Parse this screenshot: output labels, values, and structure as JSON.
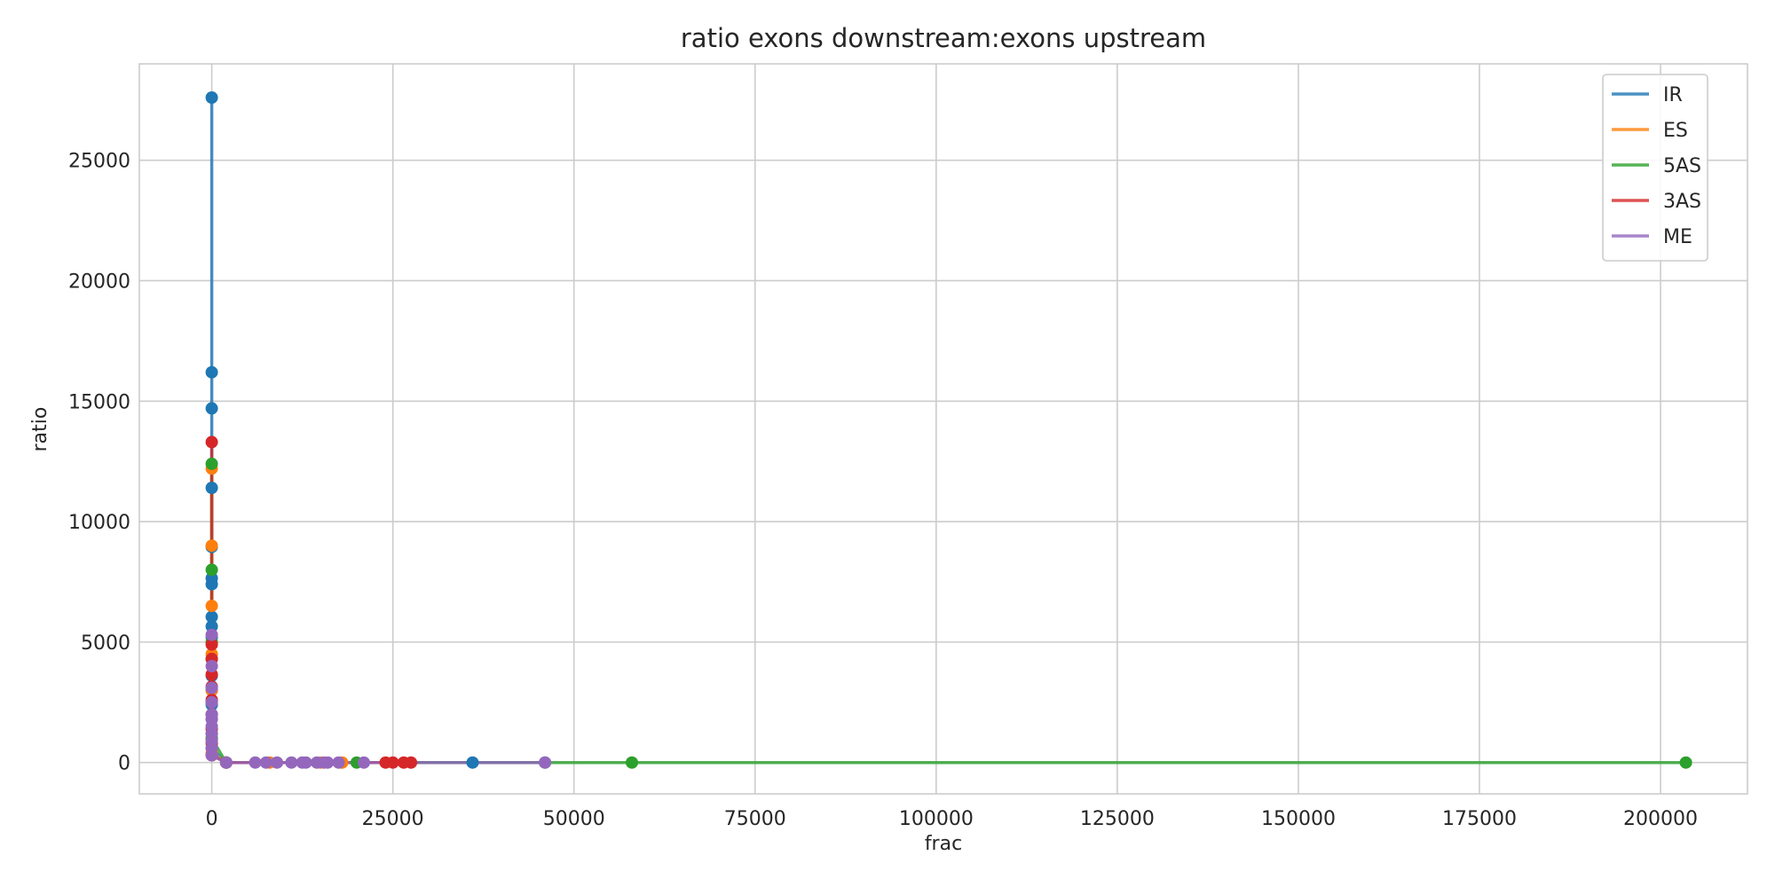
{
  "chart_data": {
    "type": "line",
    "title": "ratio exons downstream:exons upstream",
    "xlabel": "frac",
    "ylabel": "ratio",
    "xlim": [
      -10000,
      212000
    ],
    "ylim": [
      -1300,
      29000
    ],
    "x_ticks": [
      0,
      25000,
      50000,
      75000,
      100000,
      125000,
      150000,
      175000,
      200000
    ],
    "x_tick_labels": [
      "0",
      "25000",
      "50000",
      "75000",
      "100000",
      "125000",
      "150000",
      "175000",
      "200000"
    ],
    "y_ticks": [
      0,
      5000,
      10000,
      15000,
      20000,
      25000
    ],
    "y_tick_labels": [
      "0",
      "5000",
      "10000",
      "15000",
      "20000",
      "25000"
    ],
    "grid": true,
    "legend_position": "top-right",
    "series": [
      {
        "name": "IR",
        "color": "#1f77b4",
        "x": [
          0,
          0,
          0,
          0,
          0,
          0,
          0,
          0,
          0,
          0,
          0,
          0,
          0,
          0,
          0,
          0,
          0,
          2000,
          36000,
          46000
        ],
        "y": [
          27600,
          16200,
          14700,
          11400,
          8950,
          7650,
          7400,
          6050,
          5650,
          5200,
          4300,
          3600,
          3000,
          2400,
          1800,
          1200,
          600,
          0,
          0,
          0
        ]
      },
      {
        "name": "ES",
        "color": "#ff7f0e",
        "x": [
          0,
          0,
          0,
          0,
          0,
          0,
          0,
          0,
          2000,
          8000,
          15000,
          18000
        ],
        "y": [
          12200,
          9000,
          6500,
          4500,
          3000,
          2000,
          1000,
          400,
          0,
          0,
          0,
          0
        ]
      },
      {
        "name": "5AS",
        "color": "#2ca02c",
        "x": [
          0,
          0,
          0,
          0,
          0,
          2000,
          20000,
          58000,
          203500
        ],
        "y": [
          12400,
          8000,
          5000,
          2500,
          1000,
          0,
          0,
          0,
          0
        ]
      },
      {
        "name": "3AS",
        "color": "#d62728",
        "x": [
          0,
          0,
          0,
          0,
          0,
          0,
          0,
          0,
          0,
          0,
          2000,
          24000,
          25000,
          26500,
          27500
        ],
        "y": [
          13300,
          4900,
          4300,
          3650,
          3150,
          2600,
          2000,
          1400,
          800,
          300,
          0,
          0,
          0,
          0,
          0
        ]
      },
      {
        "name": "ME",
        "color": "#9467bd",
        "x": [
          0,
          0,
          0,
          0,
          0,
          0,
          0,
          0,
          0,
          0,
          0,
          2000,
          6000,
          7500,
          9000,
          11000,
          12500,
          13000,
          14500,
          15500,
          16000,
          17500,
          21000,
          46000
        ],
        "y": [
          5300,
          4000,
          3100,
          2500,
          2000,
          1800,
          1500,
          1200,
          900,
          600,
          300,
          0,
          0,
          0,
          0,
          0,
          0,
          0,
          0,
          0,
          0,
          0,
          0,
          0
        ]
      }
    ]
  }
}
